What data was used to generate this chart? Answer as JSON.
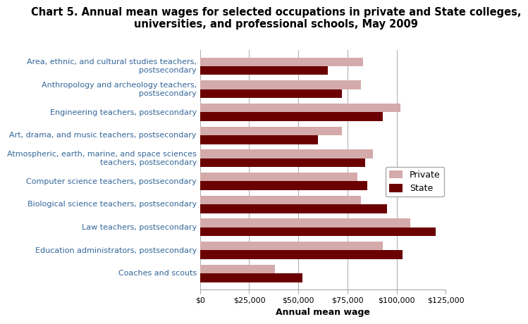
{
  "title": "Chart 5. Annual mean wages for selected occupations in private and State colleges,\nuniversities, and professional schools, May 2009",
  "categories": [
    "Coaches and scouts",
    "Education administrators, postsecondary",
    "Law teachers, postsecondary",
    "Biological science teachers, postsecondary",
    "Computer science teachers, postsecondary",
    "Atmospheric, earth, marine, and space sciences\nteachers, postsecondary",
    "Art, drama, and music teachers, postsecondary",
    "Engineering teachers, postsecondary",
    "Anthropology and archeology teachers,\npostsecondary",
    "Area, ethnic, and cultural studies teachers,\npostsecondary"
  ],
  "private_values": [
    38000,
    93000,
    107000,
    82000,
    80000,
    88000,
    72000,
    102000,
    82000,
    83000
  ],
  "state_values": [
    52000,
    103000,
    120000,
    95000,
    85000,
    84000,
    60000,
    93000,
    72000,
    65000
  ],
  "private_color": "#D4AAAA",
  "state_color": "#6B0000",
  "xlabel": "Annual mean wage",
  "xlim": [
    0,
    125000
  ],
  "xticks": [
    0,
    25000,
    50000,
    75000,
    100000,
    125000
  ],
  "xtick_labels": [
    "$0",
    "$25,000",
    "$50,000",
    "$75,000",
    "$100,000",
    "$125,000"
  ],
  "legend_private": "Private",
  "legend_state": "State",
  "background_color": "#ffffff",
  "bar_height": 0.38,
  "title_fontsize": 10.5,
  "axis_label_fontsize": 9,
  "tick_fontsize": 8,
  "legend_fontsize": 9,
  "label_fontsize": 8,
  "label_color": "#336699"
}
